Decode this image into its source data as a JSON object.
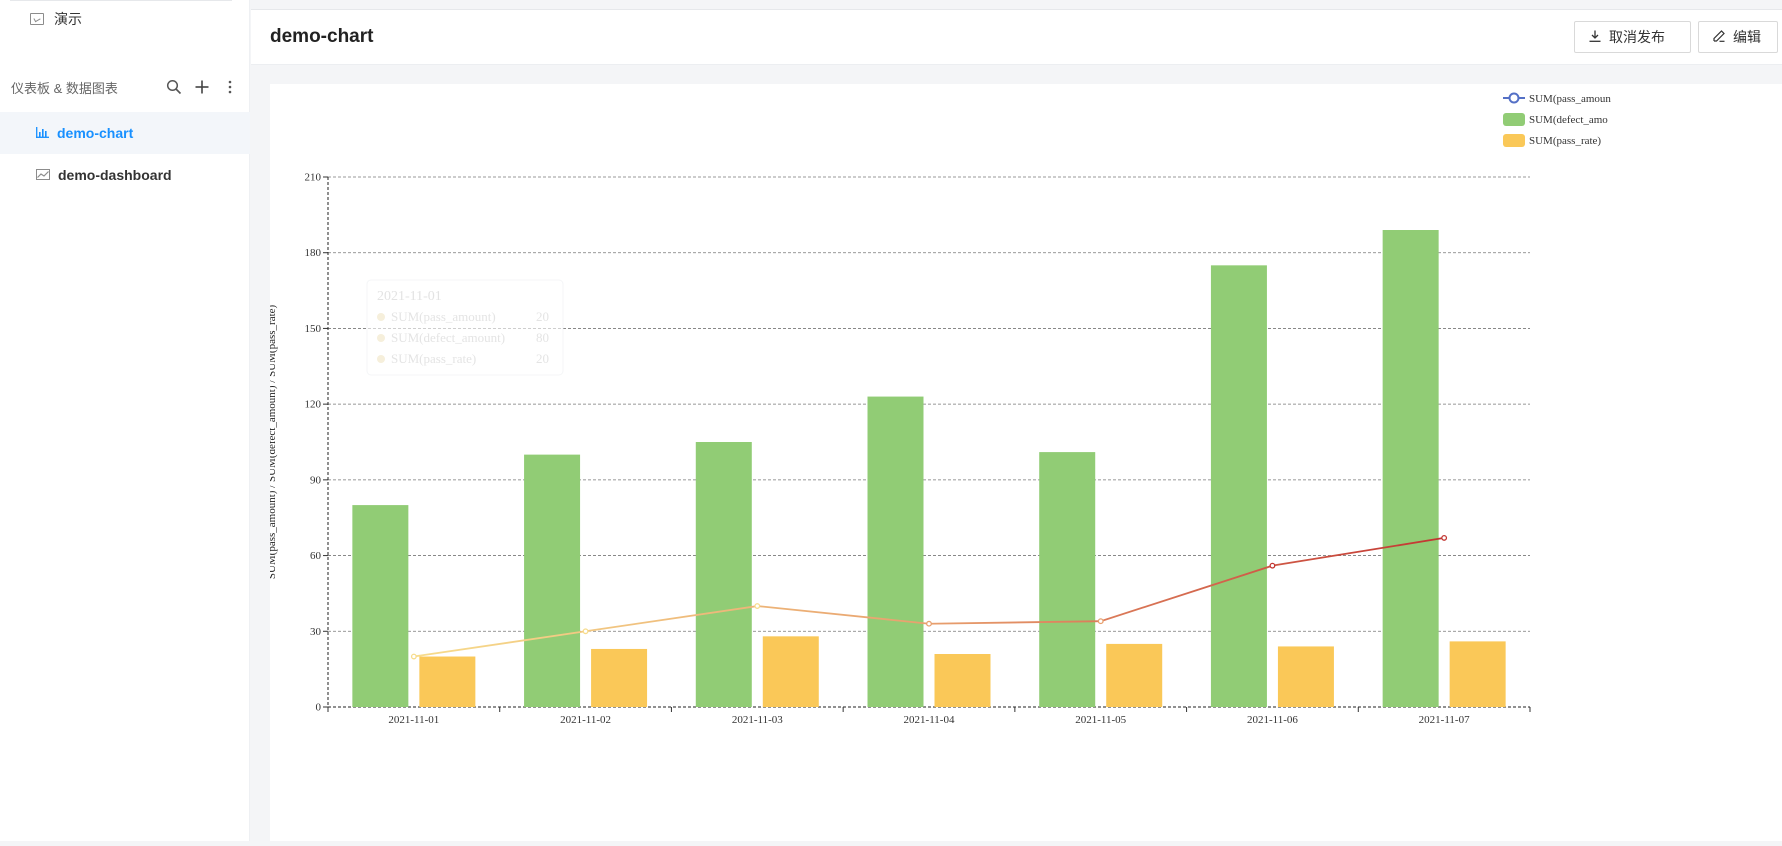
{
  "sidebar": {
    "top_item": {
      "label": "演示",
      "icon": "presentation-icon"
    },
    "section": {
      "title": "仪表板 & 数据图表",
      "search_icon": "search-icon",
      "add_icon": "plus-icon",
      "more_icon": "more-vertical-icon"
    },
    "items": [
      {
        "label": "demo-chart",
        "icon": "bar-chart-icon",
        "active": true
      },
      {
        "label": "demo-dashboard",
        "icon": "area-chart-icon",
        "active": false
      }
    ]
  },
  "header": {
    "title": "demo-chart",
    "unpublish_label": "取消发布",
    "unpublish_icon": "download-icon",
    "edit_label": "编辑",
    "edit_icon": "edit-icon"
  },
  "chart_data": {
    "type": "bar",
    "categories": [
      "2021-11-01",
      "2021-11-02",
      "2021-11-03",
      "2021-11-04",
      "2021-11-05",
      "2021-11-06",
      "2021-11-07"
    ],
    "series": [
      {
        "name": "SUM(pass_amount)",
        "type": "line",
        "values": [
          20,
          30,
          40,
          33,
          34,
          56,
          67
        ]
      },
      {
        "name": "SUM(defect_amount)",
        "type": "bar",
        "color": "#91cc75",
        "values": [
          80,
          100,
          105,
          123,
          101,
          175,
          189
        ]
      },
      {
        "name": "SUM(pass_rate)",
        "type": "bar",
        "color": "#fac858",
        "values": [
          20,
          23,
          28,
          21,
          25,
          24,
          26
        ]
      }
    ],
    "legend_labels": [
      "SUM(pass_amoun",
      "SUM(defect_amo",
      "SUM(pass_rate)"
    ],
    "ylabel": "SUM(pass_amount) / SUM(defect_amount) / SUM(pass_rate)",
    "yticks": [
      0,
      30,
      60,
      90,
      120,
      150,
      180,
      210
    ],
    "ylim": [
      0,
      210
    ],
    "grid": true,
    "legend_position": "top-right",
    "line_gradient": [
      "#f7dc8c",
      "#e8a06e",
      "#c23531"
    ],
    "tooltip": {
      "title": "2021-11-01",
      "rows": [
        {
          "name": "SUM(pass_amount)",
          "value": "20"
        },
        {
          "name": "SUM(defect_amount)",
          "value": "80"
        },
        {
          "name": "SUM(pass_rate)",
          "value": "20"
        }
      ]
    }
  }
}
